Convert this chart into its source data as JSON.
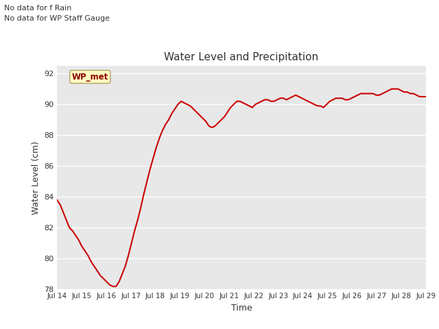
{
  "title": "Water Level and Precipitation",
  "xlabel": "Time",
  "ylabel": "Water Level (cm)",
  "ylim": [
    78,
    92.5
  ],
  "yticks": [
    78,
    80,
    82,
    84,
    86,
    88,
    90,
    92
  ],
  "bg_color": "#e8e8e8",
  "line_color": "#cc0000",
  "line_width": 1.5,
  "annotation_line1": "No data for f Rain",
  "annotation_line2": "No data for WP Staff Gauge",
  "wp_met_label": "WP_met",
  "xtick_labels": [
    "Jul 14",
    "Jul 15",
    "Jul 16",
    "Jul 17",
    "Jul 18",
    "Jul 19",
    "Jul 20",
    "Jul 21",
    "Jul 22",
    "Jul 23",
    "Jul 24",
    "Jul 25",
    "Jul 26",
    "Jul 27",
    "Jul 28",
    "Jul 29"
  ],
  "water_level": [
    83.8,
    83.5,
    83.0,
    82.5,
    82.0,
    81.8,
    81.5,
    81.2,
    80.8,
    80.5,
    80.2,
    79.8,
    79.5,
    79.2,
    78.9,
    78.7,
    78.5,
    78.3,
    78.2,
    78.2,
    78.5,
    79.0,
    79.5,
    80.2,
    81.0,
    81.8,
    82.5,
    83.3,
    84.2,
    85.0,
    85.8,
    86.5,
    87.2,
    87.8,
    88.3,
    88.7,
    89.0,
    89.4,
    89.7,
    90.0,
    90.2,
    90.1,
    90.0,
    89.9,
    89.7,
    89.5,
    89.3,
    89.1,
    88.9,
    88.6,
    88.5,
    88.6,
    88.8,
    89.0,
    89.2,
    89.5,
    89.8,
    90.0,
    90.2,
    90.2,
    90.1,
    90.0,
    89.9,
    89.8,
    90.0,
    90.1,
    90.2,
    90.3,
    90.3,
    90.2,
    90.2,
    90.3,
    90.4,
    90.4,
    90.3,
    90.4,
    90.5,
    90.6,
    90.5,
    90.4,
    90.3,
    90.2,
    90.1,
    90.0,
    89.9,
    89.9,
    89.8,
    90.0,
    90.2,
    90.3,
    90.4,
    90.4,
    90.4,
    90.3,
    90.3,
    90.4,
    90.5,
    90.6,
    90.7,
    90.7,
    90.7,
    90.7,
    90.7,
    90.6,
    90.6,
    90.7,
    90.8,
    90.9,
    91.0,
    91.0,
    91.0,
    90.9,
    90.8,
    90.8,
    90.7,
    90.7,
    90.6,
    90.5,
    90.5,
    90.5
  ]
}
